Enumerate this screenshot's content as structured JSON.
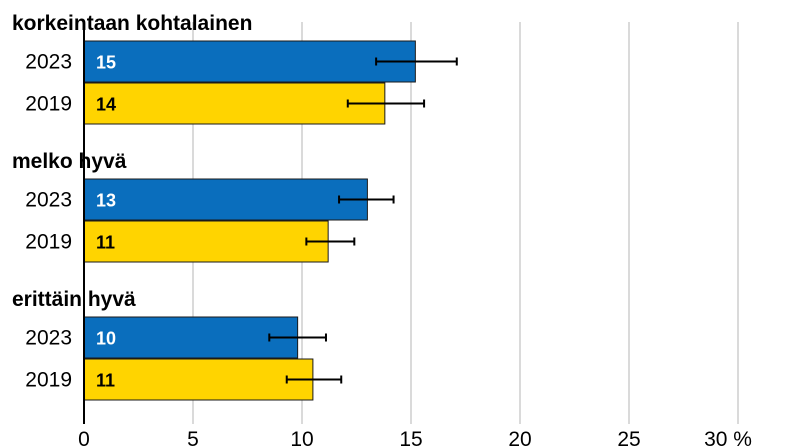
{
  "chart_data": {
    "type": "bar",
    "orientation": "horizontal",
    "x_ticks": [
      "0",
      "5",
      "10",
      "15",
      "20",
      "25",
      "30 %"
    ],
    "xlim": [
      0,
      30
    ],
    "grid": true,
    "colors": {
      "2023": "#0a6ebd",
      "2019": "#ffd400",
      "error_bar": "#000000",
      "grid": "#b5b5b5"
    },
    "groups": [
      {
        "title": "korkeintaan kohtalainen",
        "bars": [
          {
            "year": "2023",
            "value": 15.2,
            "label": "15",
            "ci": [
              13.4,
              17.1
            ]
          },
          {
            "year": "2019",
            "value": 13.8,
            "label": "14",
            "ci": [
              12.1,
              15.6
            ]
          }
        ]
      },
      {
        "title": "melko hyvä",
        "bars": [
          {
            "year": "2023",
            "value": 13.0,
            "label": "13",
            "ci": [
              11.7,
              14.2
            ]
          },
          {
            "year": "2019",
            "value": 11.2,
            "label": "11",
            "ci": [
              10.2,
              12.4
            ]
          }
        ]
      },
      {
        "title": "erittäin hyvä",
        "bars": [
          {
            "year": "2023",
            "value": 9.8,
            "label": "10",
            "ci": [
              8.5,
              11.1
            ]
          },
          {
            "year": "2019",
            "value": 10.5,
            "label": "11",
            "ci": [
              9.3,
              11.8
            ]
          }
        ]
      }
    ]
  }
}
